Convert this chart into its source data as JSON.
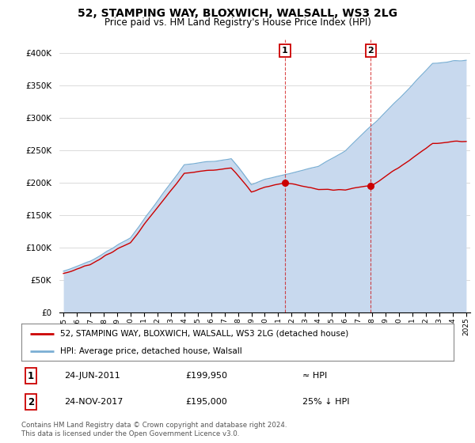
{
  "title": "52, STAMPING WAY, BLOXWICH, WALSALL, WS3 2LG",
  "subtitle": "Price paid vs. HM Land Registry's House Price Index (HPI)",
  "hpi_fill_color": "#c8d9ee",
  "hpi_line_color": "#7bafd4",
  "price_color": "#cc0000",
  "marker1_year": 2011.48,
  "marker2_year": 2017.9,
  "marker1_price": 199950,
  "marker2_price": 195000,
  "marker1_date": "24-JUN-2011",
  "marker2_date": "24-NOV-2017",
  "marker1_hpi_text": "≈ HPI",
  "marker2_hpi_text": "25% ↓ HPI",
  "legend_price_label": "52, STAMPING WAY, BLOXWICH, WALSALL, WS3 2LG (detached house)",
  "legend_hpi_label": "HPI: Average price, detached house, Walsall",
  "footnote": "Contains HM Land Registry data © Crown copyright and database right 2024.\nThis data is licensed under the Open Government Licence v3.0.",
  "ylim": [
    0,
    420000
  ],
  "yticks": [
    0,
    50000,
    100000,
    150000,
    200000,
    250000,
    300000,
    350000,
    400000
  ],
  "xlim_start": 1994.7,
  "xlim_end": 2025.3,
  "background_color": "#ffffff",
  "marker_box_color": "#cc0000"
}
